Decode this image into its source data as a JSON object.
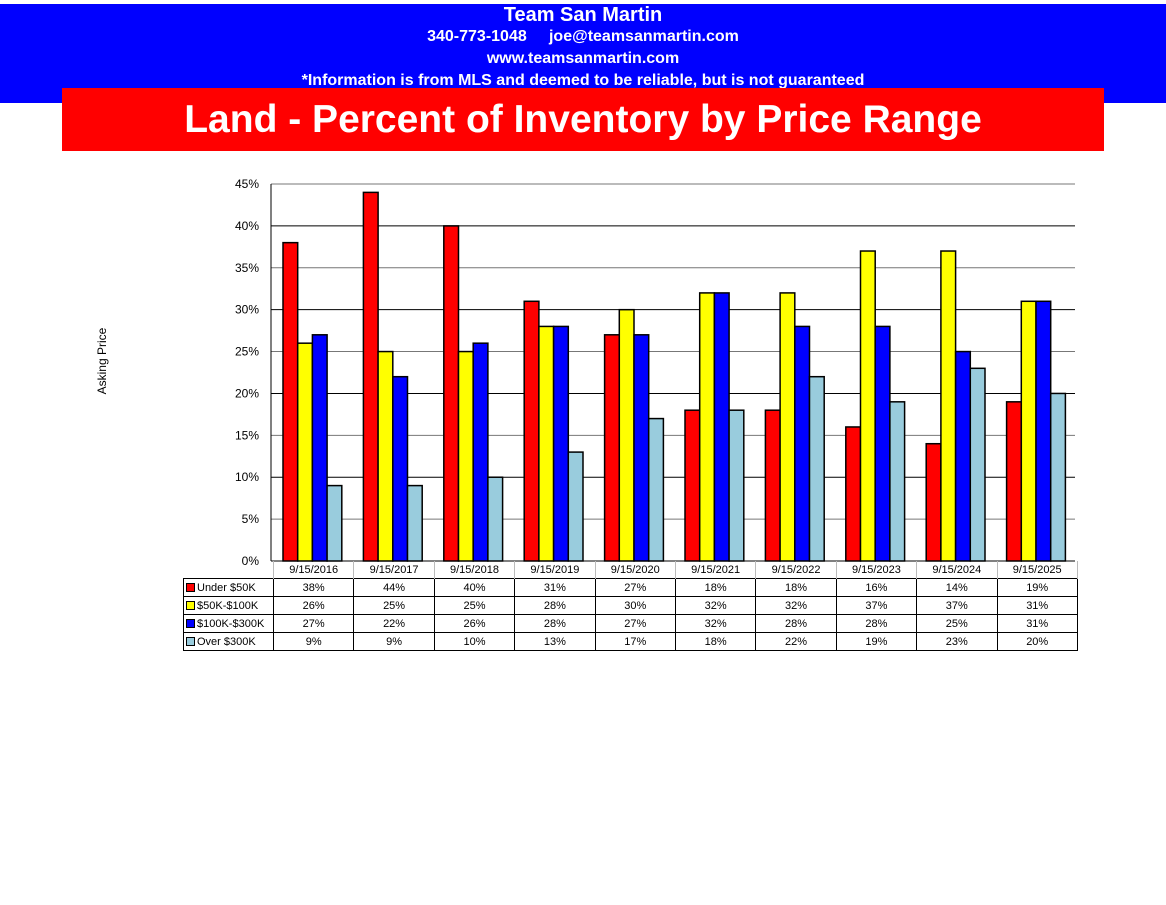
{
  "header": {
    "title": "Land - Percent of Inventory by Price Range"
  },
  "footer": {
    "name": "Team San Martin",
    "phone": "340-773-1048",
    "email": "joe@teamsanmartin.com",
    "website": "www.teamsanmartin.com",
    "disclaimer": "*Information is from MLS and deemed to be reliable, but is not guaranteed"
  },
  "chart_data": {
    "type": "bar",
    "title": "Land - Percent of Inventory by Price Range",
    "ylabel": "Asking Price",
    "xlabel": "",
    "ylim": [
      0,
      45
    ],
    "yticks": [
      "0%",
      "5%",
      "10%",
      "15%",
      "20%",
      "25%",
      "30%",
      "35%",
      "40%",
      "45%"
    ],
    "grid": true,
    "legend": "table-bottom",
    "categories": [
      "9/15/2016",
      "9/15/2017",
      "9/15/2018",
      "9/15/2019",
      "9/15/2020",
      "9/15/2021",
      "9/15/2022",
      "9/15/2023",
      "9/15/2024",
      "9/15/2025"
    ],
    "series": [
      {
        "name": "Under $50K",
        "color": "#ff0000",
        "values": [
          38,
          44,
          40,
          31,
          27,
          18,
          18,
          16,
          14,
          19
        ]
      },
      {
        "name": "$50K-$100K",
        "color": "#ffff00",
        "values": [
          26,
          25,
          25,
          28,
          30,
          32,
          32,
          37,
          37,
          31
        ]
      },
      {
        "name": "$100K-$300K",
        "color": "#0000ff",
        "values": [
          27,
          22,
          26,
          28,
          27,
          32,
          28,
          28,
          25,
          31
        ]
      },
      {
        "name": "Over $300K",
        "color": "#99ccdd",
        "values": [
          9,
          9,
          10,
          13,
          17,
          18,
          22,
          19,
          23,
          20
        ]
      }
    ]
  }
}
